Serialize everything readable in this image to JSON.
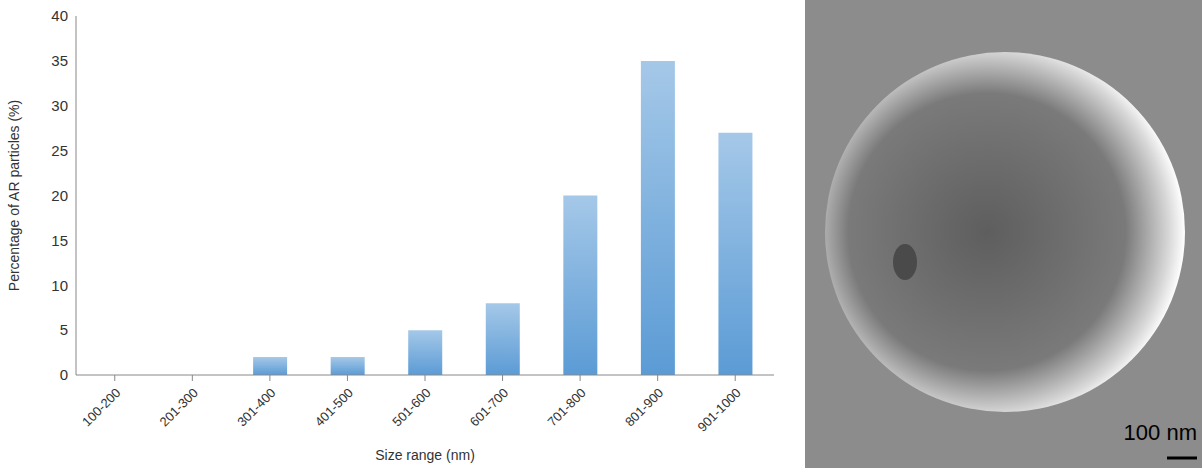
{
  "chart_data": {
    "type": "bar",
    "categories": [
      "100-200",
      "201-300",
      "301-400",
      "401-500",
      "501-600",
      "601-700",
      "701-800",
      "801-900",
      "901-1000"
    ],
    "values": [
      0,
      0,
      2,
      2,
      5,
      8,
      20,
      35,
      27
    ],
    "color": "#5b9bd5",
    "ylim": [
      0,
      40
    ],
    "yticks": [
      0,
      5,
      10,
      15,
      20,
      25,
      30,
      35,
      40
    ],
    "grid": false,
    "x_label": "Size range (nm)",
    "y_label": "Percentage of AR particles  (%)"
  },
  "image": {
    "scale_bar": "100 nm"
  }
}
